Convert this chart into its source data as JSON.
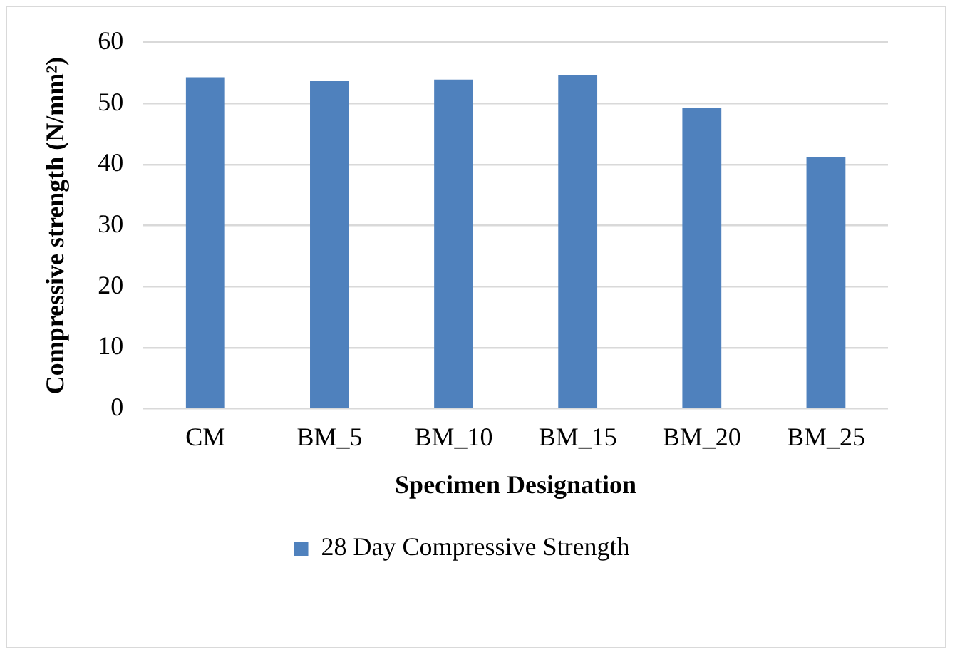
{
  "chart_data": {
    "type": "bar",
    "xlabel": "Specimen Designation",
    "ylabel": "Compressive strength (N/mm²)",
    "categories": [
      "CM",
      "BM_5",
      "BM_10",
      "BM_15",
      "BM_20",
      "BM_25"
    ],
    "series": [
      {
        "name": "28 Day Compressive Strength",
        "color": "#4f81bd",
        "values": [
          54.3,
          53.7,
          53.9,
          54.7,
          49.2,
          41.2
        ]
      }
    ],
    "ylim": [
      0,
      60
    ],
    "yticks": [
      0,
      10,
      20,
      30,
      40,
      50,
      60
    ],
    "grid": "y",
    "legend": "bottom"
  }
}
